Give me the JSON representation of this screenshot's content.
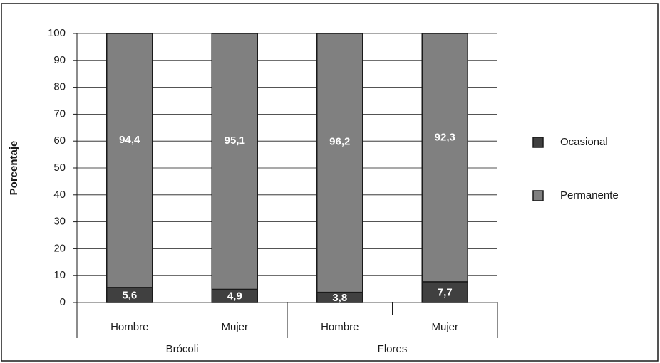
{
  "chart_data": {
    "type": "stacked_bar",
    "ylabel": "Porcentaje",
    "categories": [
      "Hombre",
      "Mujer",
      "Hombre",
      "Mujer"
    ],
    "group_labels": [
      "Brócoli",
      "Flores"
    ],
    "series": [
      {
        "name": "Ocasional",
        "color": "#404040",
        "values": [
          5.6,
          4.9,
          3.8,
          7.7
        ],
        "value_labels": [
          "5,6",
          "4,9",
          "3,8",
          "7,7"
        ]
      },
      {
        "name": "Permanente",
        "color": "#808080",
        "values": [
          94.4,
          95.1,
          96.2,
          92.3
        ],
        "value_labels": [
          "94,4",
          "95,1",
          "96,2",
          "92,3"
        ]
      }
    ],
    "ylim": [
      0,
      100
    ],
    "yticks": [
      0,
      10,
      20,
      30,
      40,
      50,
      60,
      70,
      80,
      90,
      100
    ],
    "grid": true,
    "legend": "right"
  }
}
